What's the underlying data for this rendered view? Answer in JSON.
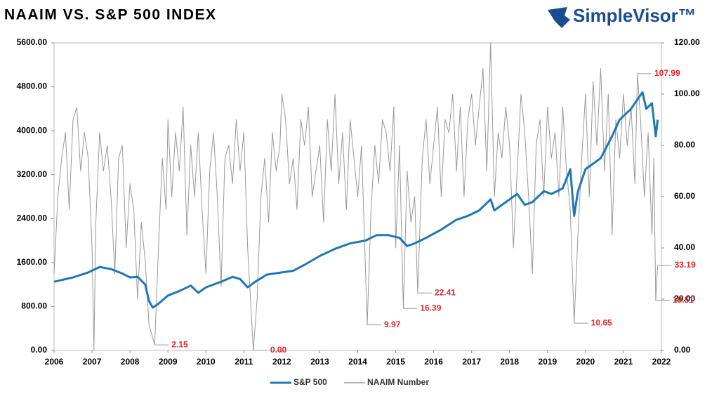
{
  "chart_data": {
    "type": "line",
    "title": "NAAIM VS. S&P 500 INDEX",
    "brand": "SimpleVisor™",
    "xlim": [
      2006,
      2022
    ],
    "xticks": [
      2006,
      2007,
      2008,
      2009,
      2010,
      2011,
      2012,
      2013,
      2014,
      2015,
      2016,
      2017,
      2018,
      2019,
      2020,
      2021,
      2022
    ],
    "ylim": [
      0,
      5600
    ],
    "yticks": [
      {
        "value": 0,
        "label": "0.00"
      },
      {
        "value": 800,
        "label": "800.00"
      },
      {
        "value": 1600,
        "label": "1600.00"
      },
      {
        "value": 2400,
        "label": "2400.00"
      },
      {
        "value": 3200,
        "label": "3200.00"
      },
      {
        "value": 4000,
        "label": "4000.00"
      },
      {
        "value": 4800,
        "label": "4800.00"
      },
      {
        "value": 5600,
        "label": "5600.00"
      }
    ],
    "y2lim": [
      0,
      120
    ],
    "y2ticks": [
      {
        "value": 0,
        "label": "0.00"
      },
      {
        "value": 20,
        "label": "20.00"
      },
      {
        "value": 40,
        "label": "40.00"
      },
      {
        "value": 60,
        "label": "60.00"
      },
      {
        "value": 80,
        "label": "80.00"
      },
      {
        "value": 100,
        "label": "100.00"
      },
      {
        "value": 120,
        "label": "120.00"
      }
    ],
    "legend": "bottom",
    "series": [
      {
        "name": "S&P 500",
        "color": "#1f77b4",
        "axis": "y",
        "x": [
          2006.0,
          2006.5,
          2006.9,
          2007.2,
          2007.5,
          2007.8,
          2008.0,
          2008.2,
          2008.4,
          2008.5,
          2008.6,
          2008.75,
          2009.0,
          2009.3,
          2009.6,
          2009.8,
          2010.0,
          2010.4,
          2010.7,
          2010.9,
          2011.1,
          2011.3,
          2011.6,
          2012.0,
          2012.3,
          2012.6,
          2013.0,
          2013.4,
          2013.8,
          2014.2,
          2014.5,
          2014.8,
          2015.1,
          2015.3,
          2015.5,
          2015.8,
          2016.2,
          2016.6,
          2016.9,
          2017.2,
          2017.5,
          2017.6,
          2017.9,
          2018.2,
          2018.4,
          2018.6,
          2018.9,
          2019.1,
          2019.4,
          2019.6,
          2019.7,
          2019.8,
          2020.0,
          2020.2,
          2020.4,
          2020.7,
          2020.9,
          2021.2,
          2021.5,
          2021.6,
          2021.75,
          2021.85,
          2021.9
        ],
        "values": [
          1250,
          1330,
          1420,
          1520,
          1480,
          1400,
          1330,
          1340,
          1200,
          900,
          780,
          850,
          1000,
          1080,
          1180,
          1050,
          1150,
          1250,
          1340,
          1300,
          1150,
          1250,
          1380,
          1420,
          1450,
          1560,
          1720,
          1850,
          1950,
          2000,
          2100,
          2100,
          2050,
          1900,
          1950,
          2050,
          2200,
          2380,
          2450,
          2550,
          2750,
          2550,
          2700,
          2850,
          2650,
          2700,
          2900,
          2850,
          2950,
          3300,
          2450,
          2900,
          3300,
          3400,
          3500,
          3900,
          4200,
          4400,
          4700,
          4400,
          4500,
          3900,
          4200
        ]
      },
      {
        "name": "NAAIM Number",
        "color": "#999999",
        "axis": "y2",
        "x": [
          2006.0,
          2006.1,
          2006.2,
          2006.3,
          2006.4,
          2006.5,
          2006.6,
          2006.7,
          2006.8,
          2006.9,
          2007.0,
          2007.05,
          2007.1,
          2007.2,
          2007.3,
          2007.4,
          2007.5,
          2007.6,
          2007.7,
          2007.8,
          2007.9,
          2008.0,
          2008.1,
          2008.2,
          2008.3,
          2008.4,
          2008.5,
          2008.65,
          2008.75,
          2008.85,
          2008.95,
          2009.0,
          2009.1,
          2009.2,
          2009.3,
          2009.4,
          2009.5,
          2009.6,
          2009.7,
          2009.8,
          2009.9,
          2010.0,
          2010.1,
          2010.2,
          2010.3,
          2010.4,
          2010.5,
          2010.6,
          2010.7,
          2010.8,
          2010.9,
          2011.0,
          2011.1,
          2011.25,
          2011.35,
          2011.45,
          2011.55,
          2011.65,
          2011.75,
          2011.85,
          2011.95,
          2012.0,
          2012.1,
          2012.2,
          2012.3,
          2012.4,
          2012.5,
          2012.6,
          2012.7,
          2012.8,
          2012.9,
          2013.0,
          2013.1,
          2013.2,
          2013.3,
          2013.4,
          2013.5,
          2013.6,
          2013.7,
          2013.8,
          2013.9,
          2014.0,
          2014.1,
          2014.25,
          2014.35,
          2014.45,
          2014.55,
          2014.65,
          2014.75,
          2014.85,
          2014.95,
          2015.0,
          2015.1,
          2015.2,
          2015.3,
          2015.4,
          2015.5,
          2015.58,
          2015.7,
          2015.8,
          2015.9,
          2016.0,
          2016.1,
          2016.2,
          2016.3,
          2016.4,
          2016.5,
          2016.6,
          2016.7,
          2016.8,
          2016.9,
          2017.0,
          2017.1,
          2017.2,
          2017.3,
          2017.4,
          2017.5,
          2017.6,
          2017.7,
          2017.8,
          2017.9,
          2018.0,
          2018.1,
          2018.2,
          2018.3,
          2018.4,
          2018.5,
          2018.6,
          2018.7,
          2018.8,
          2018.9,
          2019.0,
          2019.1,
          2019.2,
          2019.3,
          2019.4,
          2019.5,
          2019.6,
          2019.7,
          2019.8,
          2019.9,
          2020.0,
          2020.1,
          2020.2,
          2020.3,
          2020.4,
          2020.5,
          2020.6,
          2020.7,
          2020.8,
          2020.9,
          2021.0,
          2021.1,
          2021.2,
          2021.3,
          2021.37,
          2021.45,
          2021.55,
          2021.65,
          2021.75,
          2021.8,
          2021.85,
          2021.9
        ],
        "values": [
          30,
          60,
          75,
          85,
          55,
          90,
          95,
          70,
          85,
          75,
          40,
          0,
          50,
          85,
          70,
          80,
          60,
          30,
          75,
          80,
          40,
          65,
          55,
          20,
          50,
          35,
          10,
          2.15,
          40,
          75,
          55,
          90,
          60,
          85,
          70,
          95,
          45,
          80,
          60,
          85,
          55,
          30,
          70,
          85,
          60,
          25,
          75,
          80,
          65,
          90,
          70,
          85,
          40,
          0,
          20,
          60,
          75,
          50,
          85,
          70,
          80,
          100,
          90,
          65,
          75,
          55,
          90,
          80,
          95,
          60,
          70,
          80,
          50,
          90,
          70,
          100,
          65,
          85,
          55,
          90,
          75,
          60,
          80,
          9.97,
          55,
          80,
          65,
          90,
          85,
          70,
          95,
          40,
          80,
          16.39,
          70,
          50,
          60,
          22.41,
          75,
          90,
          65,
          80,
          95,
          60,
          90,
          85,
          100,
          70,
          95,
          60,
          90,
          100,
          80,
          95,
          110,
          70,
          120,
          60,
          85,
          75,
          95,
          80,
          40,
          70,
          100,
          85,
          60,
          30,
          80,
          90,
          60,
          95,
          75,
          85,
          60,
          95,
          70,
          55,
          10.65,
          45,
          75,
          100,
          60,
          105,
          80,
          110,
          70,
          100,
          45,
          90,
          75,
          100,
          80,
          95,
          65,
          107.99,
          90,
          60,
          85,
          45,
          75,
          19.51,
          33.19
        ]
      }
    ],
    "annotations": [
      {
        "x": 2008.65,
        "value": 2.15,
        "label": "2.15"
      },
      {
        "x": 2011.25,
        "value": 0,
        "label": "0.00"
      },
      {
        "x": 2014.25,
        "value": 9.97,
        "label": "9.97"
      },
      {
        "x": 2015.2,
        "value": 16.39,
        "label": "16.39"
      },
      {
        "x": 2015.58,
        "value": 22.41,
        "label": "22.41"
      },
      {
        "x": 2019.7,
        "value": 10.65,
        "label": "10.65"
      },
      {
        "x": 2021.37,
        "value": 107.99,
        "label": "107.99"
      },
      {
        "x": 2021.9,
        "value": 33.19,
        "label": "33.19"
      },
      {
        "x": 2021.85,
        "value": 19.51,
        "label": "19.51"
      }
    ]
  }
}
